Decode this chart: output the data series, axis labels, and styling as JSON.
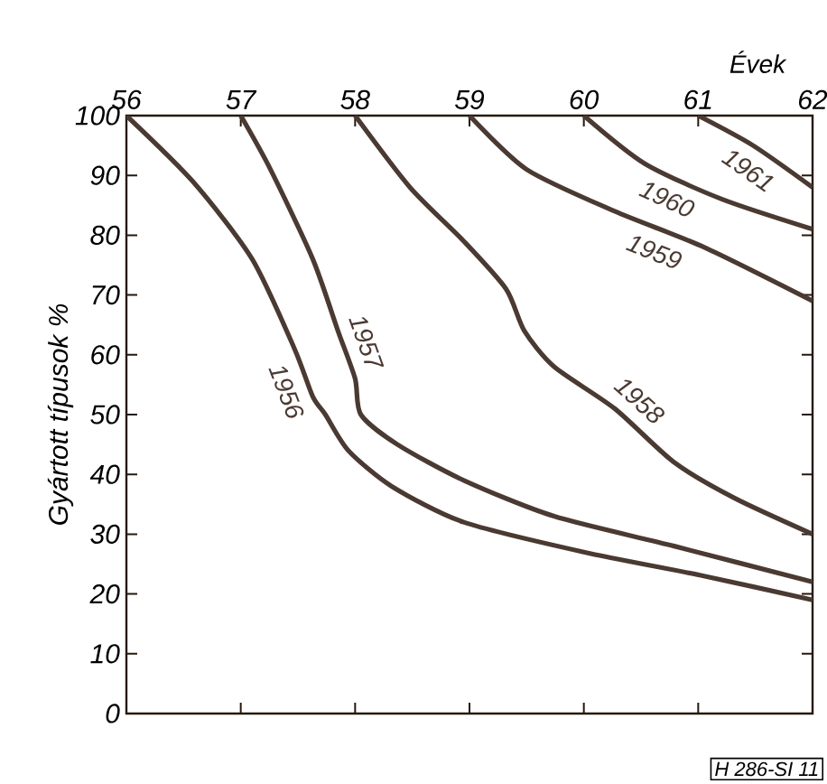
{
  "chart_data": {
    "type": "line",
    "xlabel": "Évek",
    "ylabel": "Gyártott típusok %",
    "xlim": [
      56,
      62
    ],
    "xticks": [
      56,
      57,
      58,
      59,
      60,
      61,
      62
    ],
    "ylim": [
      0,
      100
    ],
    "yticks": [
      0,
      10,
      20,
      30,
      40,
      50,
      60,
      70,
      80,
      90,
      100
    ],
    "grid": false,
    "legend": false,
    "marker": "none",
    "line_style": "solid",
    "annotations": [
      "H 286-SI 11"
    ],
    "series": [
      {
        "name": "1956",
        "color": "#4a3a32",
        "x": [
          56,
          56.58,
          57.1,
          57.47,
          57.63,
          57.74,
          57.94,
          58.32,
          58.95,
          60.0,
          61.05,
          62
        ],
        "values": [
          100,
          89,
          76,
          61,
          53,
          50,
          44,
          38,
          32,
          27,
          23,
          19
        ]
      },
      {
        "name": "1957",
        "color": "#4a3a32",
        "x": [
          57,
          57.26,
          57.63,
          57.85,
          58.0,
          58.05,
          58.37,
          58.95,
          59.74,
          60.79,
          62
        ],
        "values": [
          100,
          91,
          76,
          64,
          56,
          50,
          45,
          39,
          33,
          28,
          22
        ]
      },
      {
        "name": "1958",
        "color": "#4a3a32",
        "x": [
          58,
          58.48,
          58.95,
          59.32,
          59.48,
          59.74,
          60.27,
          60.79,
          61.32,
          62
        ],
        "values": [
          100,
          88,
          79,
          71,
          64,
          58,
          51,
          42,
          36,
          30
        ]
      },
      {
        "name": "1959",
        "color": "#4a3a32",
        "x": [
          59,
          59.5,
          60.27,
          61.05,
          62
        ],
        "values": [
          100,
          91,
          84,
          78,
          69
        ]
      },
      {
        "name": "1960",
        "color": "#4a3a32",
        "x": [
          60,
          60.53,
          61.21,
          62
        ],
        "values": [
          100,
          92,
          86,
          81
        ]
      },
      {
        "name": "1961",
        "color": "#4a3a32",
        "x": [
          61,
          61.48,
          62
        ],
        "values": [
          100,
          95,
          88
        ]
      }
    ]
  }
}
